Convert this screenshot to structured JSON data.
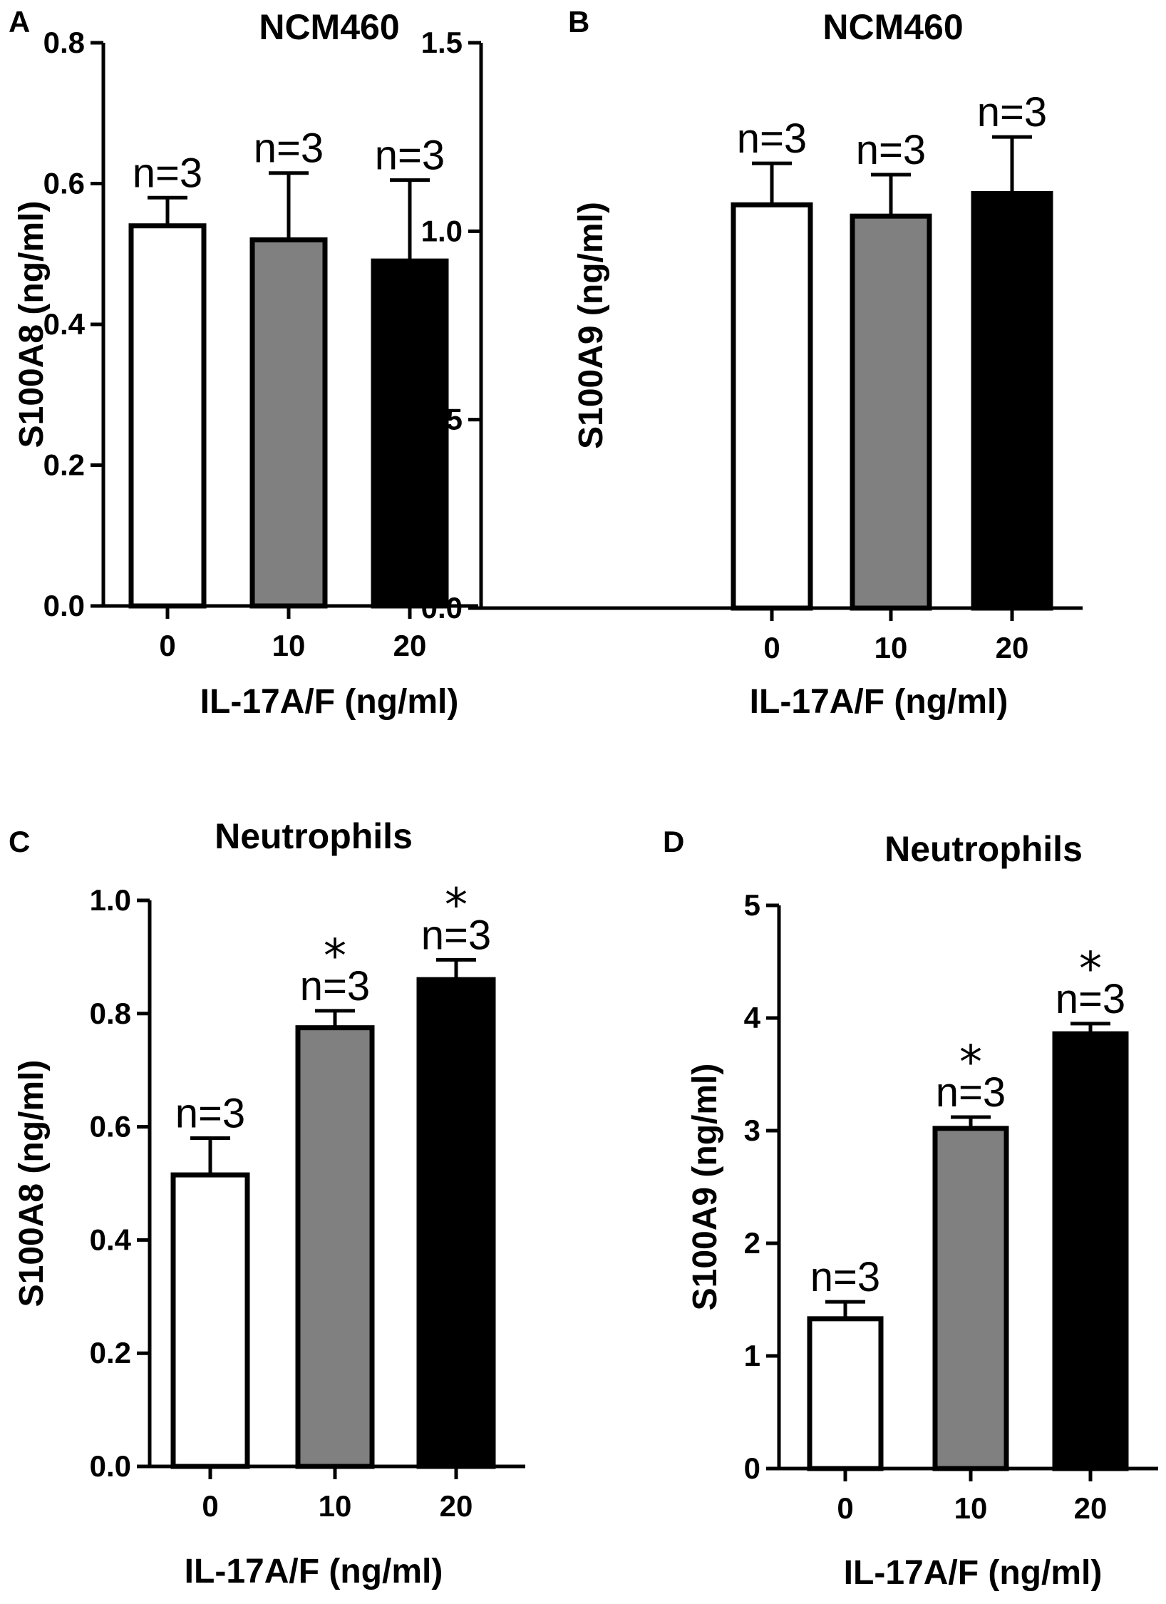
{
  "chart_data": [
    {
      "panel": "A",
      "type": "bar",
      "title": "NCM460",
      "xlabel": "IL-17A/F (ng/ml)",
      "ylabel": "S100A8 (ng/ml)",
      "categories": [
        "0",
        "10",
        "20"
      ],
      "values": [
        0.54,
        0.52,
        0.49
      ],
      "errors": [
        0.04,
        0.095,
        0.115
      ],
      "annotations": [
        "n=3",
        "n=3",
        "n=3"
      ],
      "significance": [
        "",
        "",
        ""
      ],
      "bar_colors": [
        "#ffffff",
        "#808080",
        "#000000"
      ],
      "yticks": [
        "0.0",
        "0.2",
        "0.4",
        "0.6",
        "0.8"
      ],
      "ylim": [
        0,
        0.8
      ]
    },
    {
      "panel": "B",
      "type": "bar",
      "title": "NCM460",
      "xlabel": "IL-17A/F (ng/ml)",
      "ylabel": "S100A9 (ng/ml)",
      "categories": [
        "0",
        "10",
        "20"
      ],
      "values": [
        1.07,
        1.04,
        1.1
      ],
      "errors": [
        0.11,
        0.11,
        0.15
      ],
      "annotations": [
        "n=3",
        "n=3",
        "n=3"
      ],
      "significance": [
        "",
        "",
        ""
      ],
      "bar_colors": [
        "#ffffff",
        "#808080",
        "#000000"
      ],
      "yticks": [
        "0.0",
        "0.5",
        "1.0",
        "1.5"
      ],
      "ylim": [
        0,
        1.5
      ]
    },
    {
      "panel": "C",
      "type": "bar",
      "title": "Neutrophils",
      "xlabel": "IL-17A/F (ng/ml)",
      "ylabel": "S100A8 (ng/ml)",
      "categories": [
        "0",
        "10",
        "20"
      ],
      "values": [
        0.515,
        0.775,
        0.86
      ],
      "errors": [
        0.065,
        0.03,
        0.035
      ],
      "annotations": [
        "n=3",
        "n=3",
        "n=3"
      ],
      "significance": [
        "",
        "*",
        "*"
      ],
      "bar_colors": [
        "#ffffff",
        "#808080",
        "#000000"
      ],
      "yticks": [
        "0.0",
        "0.2",
        "0.4",
        "0.6",
        "0.8",
        "1.0"
      ],
      "ylim": [
        0,
        1.0
      ]
    },
    {
      "panel": "D",
      "type": "bar",
      "title": "Neutrophils",
      "xlabel": "IL-17A/F (ng/ml)",
      "ylabel": "S100A9 (ng/ml)",
      "categories": [
        "0",
        "10",
        "20"
      ],
      "values": [
        1.33,
        3.02,
        3.86
      ],
      "errors": [
        0.15,
        0.1,
        0.09
      ],
      "annotations": [
        "n=3",
        "n=3",
        "n=3"
      ],
      "significance": [
        "",
        "*",
        "*"
      ],
      "bar_colors": [
        "#ffffff",
        "#808080",
        "#000000"
      ],
      "yticks": [
        "0",
        "1",
        "2",
        "3",
        "4",
        "5"
      ],
      "ylim": [
        0,
        5
      ]
    }
  ]
}
